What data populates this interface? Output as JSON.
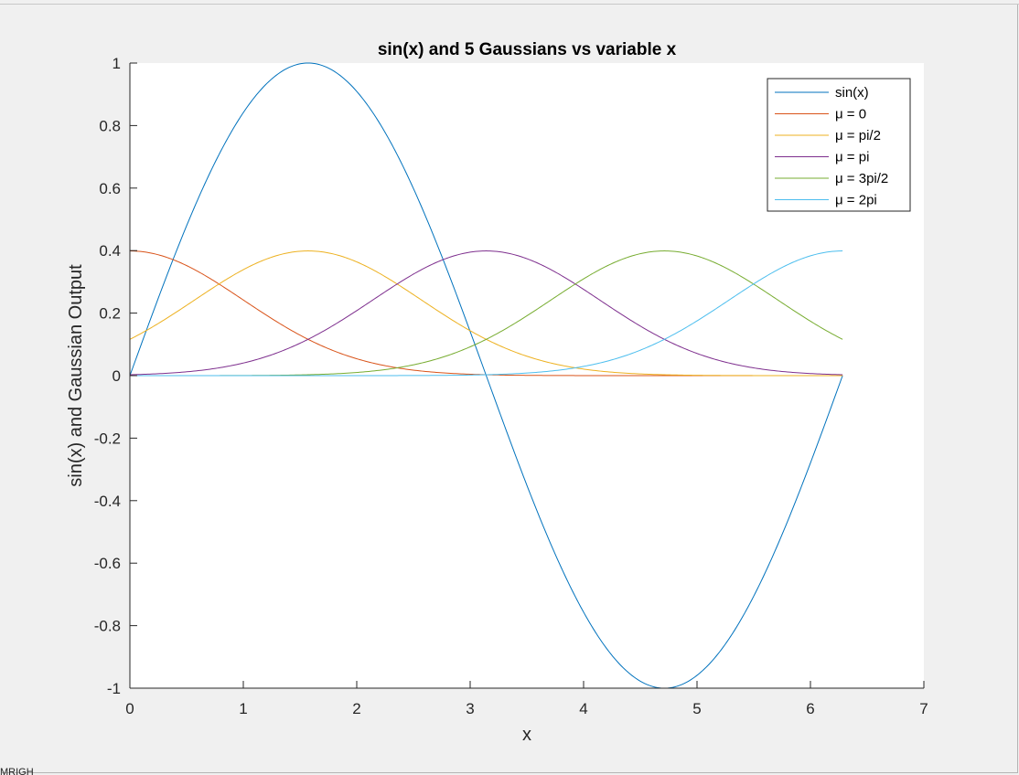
{
  "window": {
    "bottom_fragment": "MRIGH"
  },
  "chart_data": {
    "type": "line",
    "title": "sin(x) and 5 Gaussians vs variable x",
    "xlabel": "x",
    "ylabel": "sin(x) and Gaussian Output",
    "xlim": [
      0,
      7
    ],
    "ylim": [
      -1,
      1
    ],
    "xticks": [
      "0",
      "1",
      "2",
      "3",
      "4",
      "5",
      "6",
      "7"
    ],
    "yticks": [
      "-1",
      "-0.8",
      "-0.6",
      "-0.4",
      "-0.2",
      "0",
      "0.2",
      "0.4",
      "0.6",
      "0.8",
      "1"
    ],
    "grid": false,
    "legend_position": "top-right",
    "x_range": [
      0,
      6.2832
    ],
    "sigma": 1,
    "series": [
      {
        "name": "sin(x)",
        "function": "sin(x)",
        "color": "#0072BD"
      },
      {
        "name": "μ = 0",
        "mu": 0,
        "color": "#D95319"
      },
      {
        "name": "μ = pi/2",
        "mu": 1.5708,
        "color": "#EDB120"
      },
      {
        "name": "μ = pi",
        "mu": 3.1416,
        "color": "#7E2F8E"
      },
      {
        "name": "μ = 3pi/2",
        "mu": 4.7124,
        "color": "#77AC30"
      },
      {
        "name": "μ = 2pi",
        "mu": 6.2832,
        "color": "#4DBEEE"
      }
    ]
  }
}
